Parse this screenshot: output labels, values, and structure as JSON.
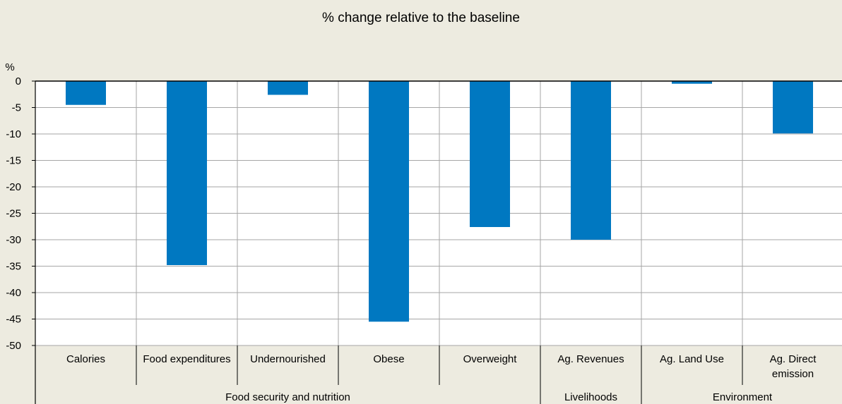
{
  "chart_data": {
    "type": "bar",
    "title": "% change relative to the baseline",
    "ylabel": "%",
    "ylim": [
      -50,
      0
    ],
    "yticks": [
      0,
      -5,
      -10,
      -15,
      -20,
      -25,
      -30,
      -35,
      -40,
      -45,
      -50
    ],
    "grid": true,
    "categories": [
      "Calories",
      "Food expenditures",
      "Undernourished",
      "Obese",
      "Overweight",
      "Ag. Revenues",
      "Ag. Land Use",
      "Ag. Direct emission"
    ],
    "category_label_lines": [
      [
        "Calories"
      ],
      [
        "Food expenditures"
      ],
      [
        "Undernourished"
      ],
      [
        "Obese"
      ],
      [
        "Overweight"
      ],
      [
        "Ag. Revenues"
      ],
      [
        "Ag. Land Use"
      ],
      [
        "Ag. Direct",
        "emission"
      ]
    ],
    "values": [
      -4.5,
      -34.8,
      -2.6,
      -45.5,
      -27.6,
      -30.0,
      -0.5,
      -9.9
    ],
    "groups": [
      {
        "label": "Food security and nutrition",
        "categories": [
          "Calories",
          "Food expenditures",
          "Undernourished",
          "Obese",
          "Overweight"
        ]
      },
      {
        "label": "Livelihoods",
        "categories": [
          "Ag. Revenues"
        ]
      },
      {
        "label": "Environment",
        "categories": [
          "Ag. Land Use",
          "Ag. Direct emission"
        ]
      }
    ],
    "bar_color": "#0078c1",
    "grid_color": "#a6a6a6"
  }
}
